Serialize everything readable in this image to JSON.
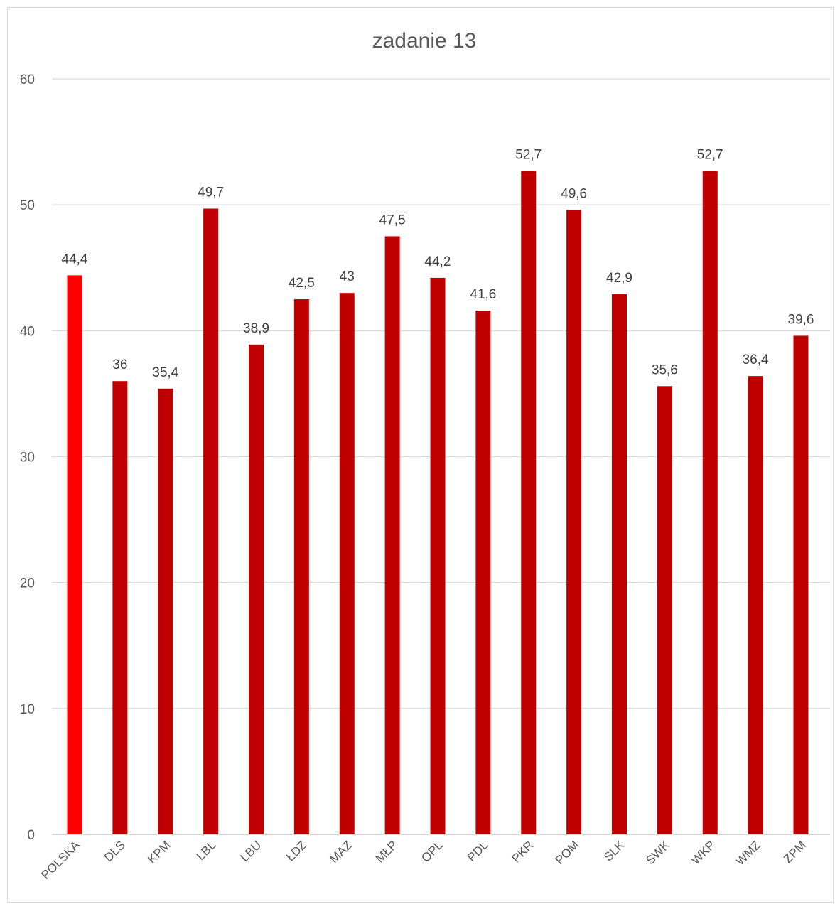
{
  "chart_data": {
    "type": "bar",
    "title": "zadanie 13",
    "xlabel": "",
    "ylabel": "",
    "ylim": [
      0,
      60
    ],
    "yticks": [
      0,
      10,
      20,
      30,
      40,
      50,
      60
    ],
    "grid": true,
    "legend": "none",
    "categories": [
      "POLSKA",
      "DLS",
      "KPM",
      "LBL",
      "LBU",
      "ŁDZ",
      "MAZ",
      "MŁP",
      "OPL",
      "PDL",
      "PKR",
      "POM",
      "SLK",
      "SWK",
      "WKP",
      "WMZ",
      "ZPM"
    ],
    "values": [
      44.4,
      36,
      35.4,
      49.7,
      38.9,
      42.5,
      43,
      47.5,
      44.2,
      41.6,
      52.7,
      49.6,
      42.9,
      35.6,
      52.7,
      36.4,
      39.6
    ],
    "data_labels": [
      "44,4",
      "36",
      "35,4",
      "49,7",
      "38,9",
      "42,5",
      "43",
      "47,5",
      "44,2",
      "41,6",
      "52,7",
      "49,6",
      "42,9",
      "35,6",
      "52,7",
      "36,4",
      "39,6"
    ],
    "colors": {
      "highlight": "#ff0000",
      "bar": "#c00000"
    },
    "highlight_category": "POLSKA"
  }
}
